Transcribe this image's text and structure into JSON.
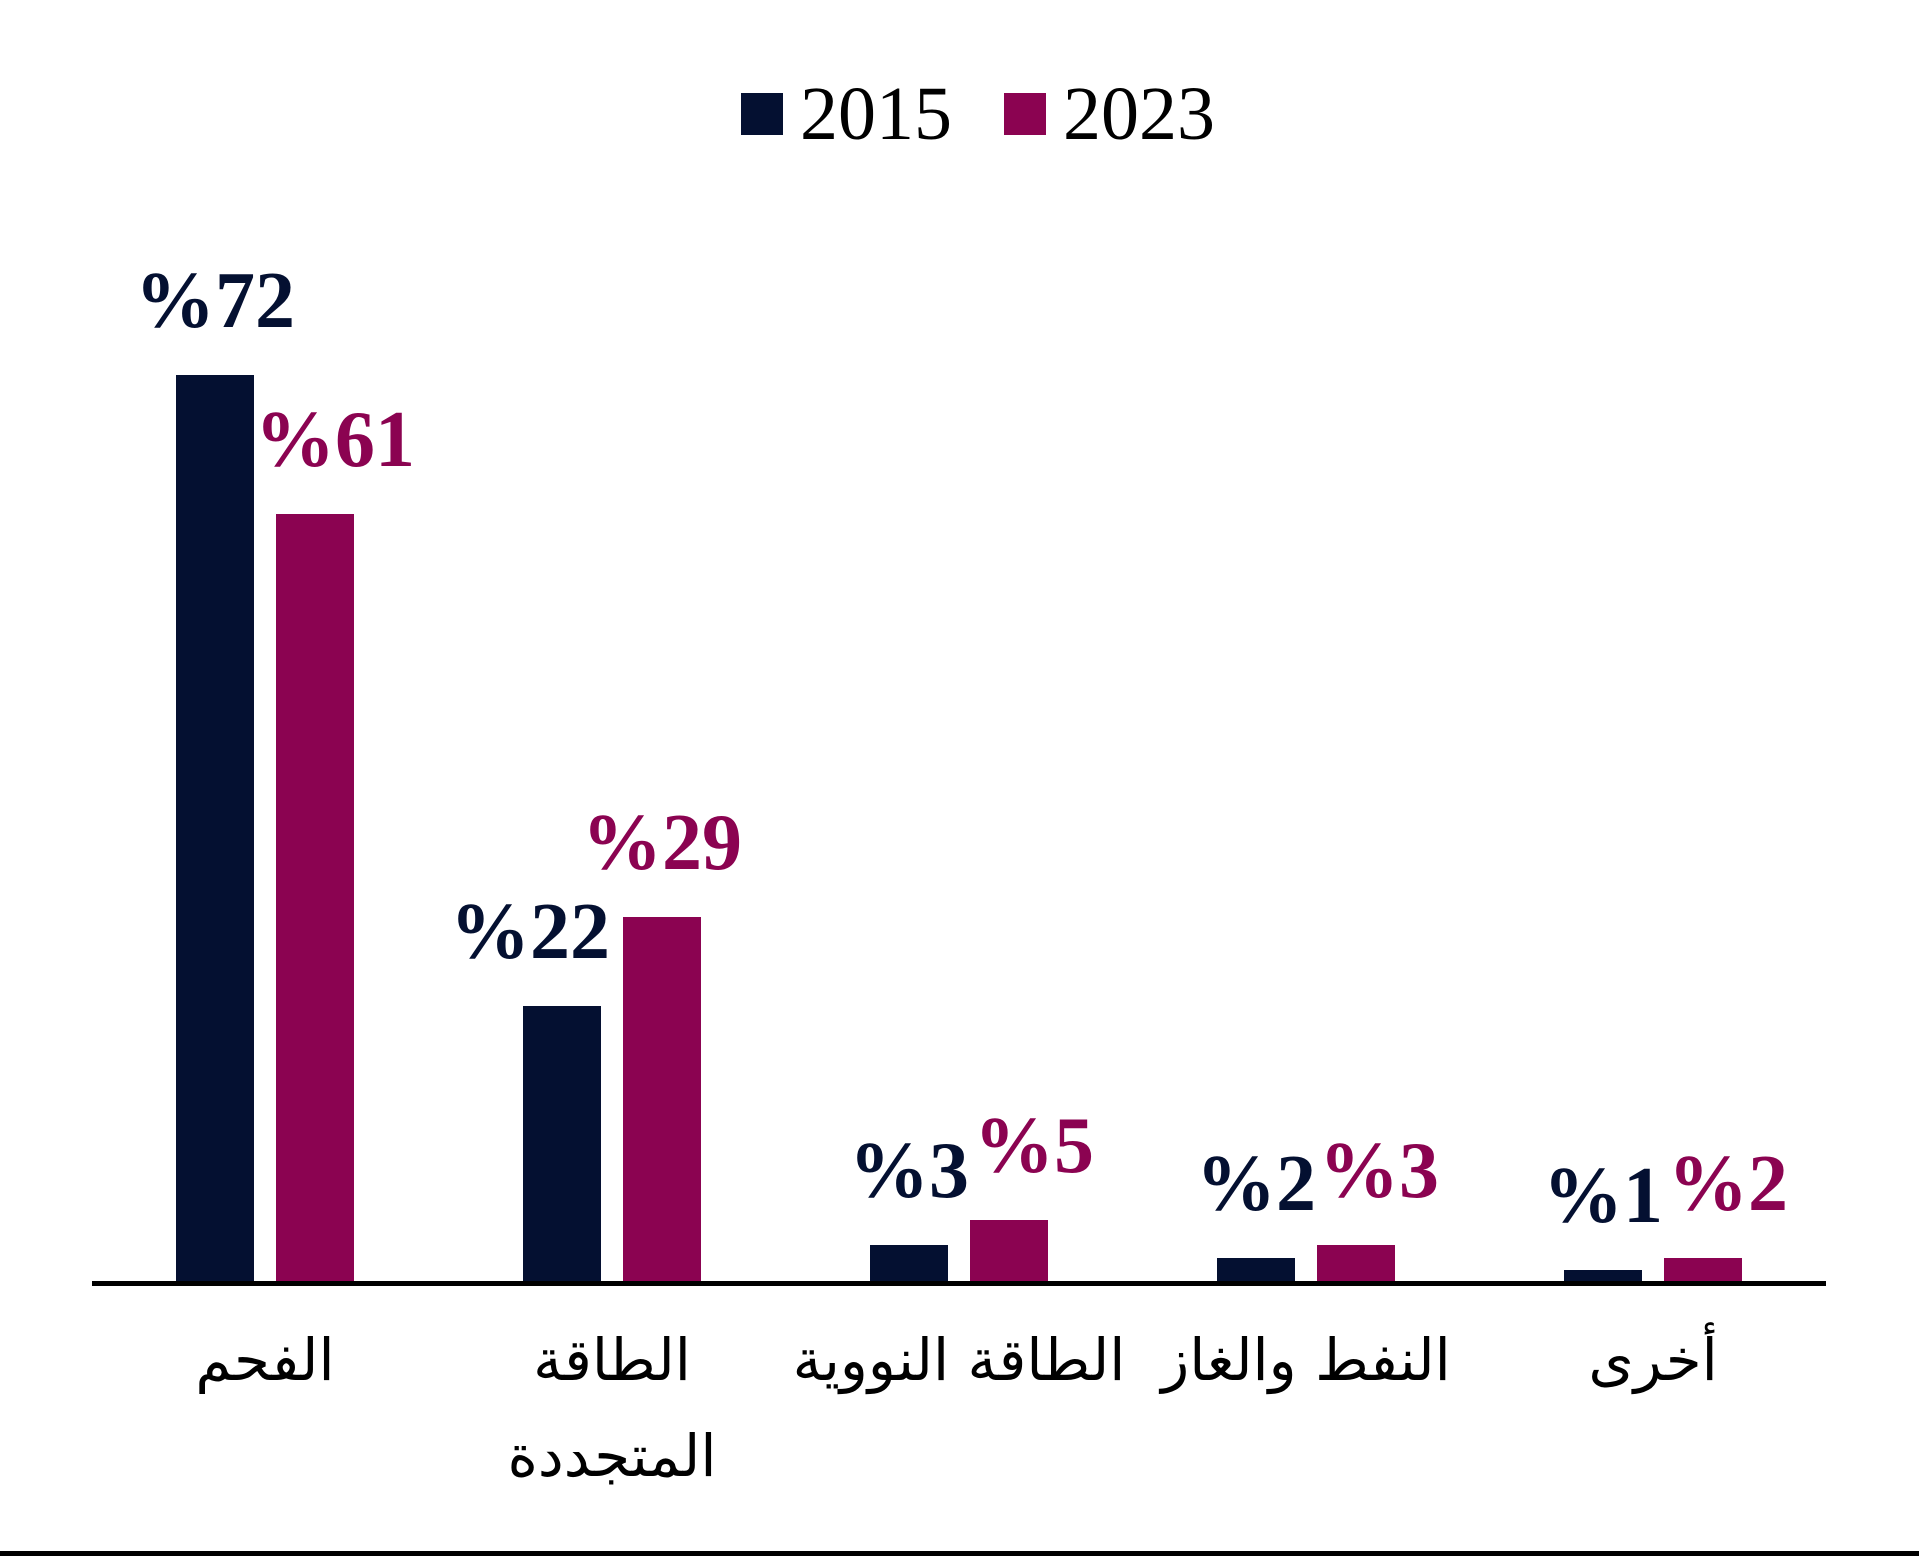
{
  "page": {
    "background": "#FFFFFF",
    "bottom_rule_color": "#000000"
  },
  "legend": {
    "items": [
      {
        "label": "2015",
        "color": "#041031"
      },
      {
        "label": "2023",
        "color": "#8B0351"
      }
    ]
  },
  "chart_data": {
    "type": "bar",
    "title": "",
    "xlabel": "",
    "ylabel": "",
    "categories": [
      "الفحم",
      "الطاقة المتجددة",
      "الطاقة النووية",
      "النفط والغاز",
      "أخرى"
    ],
    "category_lines": [
      [
        "الفحم"
      ],
      [
        "الطاقة",
        "المتجددة"
      ],
      [
        "الطاقة النووية"
      ],
      [
        "النفط والغاز"
      ],
      [
        "أخرى"
      ]
    ],
    "series": [
      {
        "name": "2015",
        "color": "#041031",
        "values": [
          72,
          22,
          3,
          2,
          1
        ],
        "data_labels": [
          "%72",
          "%22",
          "%3",
          "%2",
          "%1"
        ]
      },
      {
        "name": "2023",
        "color": "#8B0351",
        "values": [
          61,
          29,
          5,
          3,
          2
        ],
        "data_labels": [
          "%61",
          "%29",
          "%5",
          "%3",
          "%2"
        ]
      }
    ],
    "unit": "%",
    "ylim": [
      0,
      80
    ],
    "grid": false,
    "y_axis_visible": false,
    "legend_position": "top-center",
    "axis_color": "#000000"
  }
}
